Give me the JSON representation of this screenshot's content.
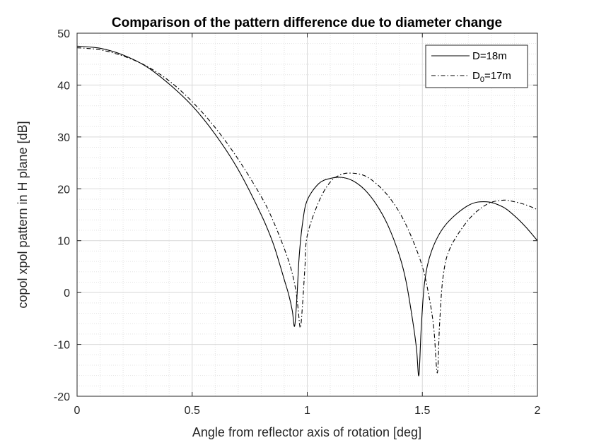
{
  "chart_data": {
    "type": "line",
    "title": "Comparison of the pattern difference due to diameter change",
    "xlabel": "Angle from reflector axis of rotation [deg]",
    "ylabel": "copol xpol pattern in H plane [dB]",
    "xlim": [
      0,
      2
    ],
    "ylim": [
      -20,
      50
    ],
    "xticks": [
      0,
      0.5,
      1,
      1.5,
      2
    ],
    "xtick_labels": [
      "0",
      "0.5",
      "1",
      "1.5",
      "2"
    ],
    "yticks": [
      -20,
      -10,
      0,
      10,
      20,
      30,
      40,
      50
    ],
    "ytick_labels": [
      "-20",
      "-10",
      "0",
      "10",
      "20",
      "30",
      "40",
      "50"
    ],
    "grid": true,
    "minor_grid": true,
    "legend_position": "top-right",
    "series": [
      {
        "name": "D=18m",
        "line_style": "solid",
        "color": "#000000",
        "x": [
          0,
          0.1,
          0.2,
          0.3,
          0.4,
          0.5,
          0.6,
          0.7,
          0.8,
          0.85,
          0.88,
          0.9,
          0.92,
          0.935,
          0.945,
          0.955,
          0.965,
          0.98,
          1.0,
          1.05,
          1.1,
          1.15,
          1.2,
          1.25,
          1.3,
          1.35,
          1.4,
          1.43,
          1.46,
          1.475,
          1.485,
          1.495,
          1.51,
          1.54,
          1.6,
          1.7,
          1.78,
          1.85,
          1.9,
          1.95,
          2.0
        ],
        "y": [
          47.5,
          47.1,
          45.8,
          43.6,
          40.2,
          36.0,
          30.5,
          23.7,
          15.0,
          9.7,
          5.5,
          2.5,
          -0.5,
          -3.5,
          -6.5,
          -1.0,
          7.0,
          13.5,
          17.8,
          21.0,
          22.0,
          22.2,
          21.5,
          19.8,
          17.0,
          13.0,
          7.2,
          2.0,
          -6.0,
          -11.0,
          -16.0,
          -7.0,
          2.0,
          8.0,
          13.0,
          16.8,
          17.5,
          16.5,
          14.8,
          12.6,
          10.0
        ]
      },
      {
        "name": "D0=17m",
        "name_text": "D",
        "name_subscript": "0",
        "name_suffix": "=17m",
        "line_style": "dashdot",
        "color": "#000000",
        "x": [
          0,
          0.1,
          0.2,
          0.3,
          0.4,
          0.5,
          0.6,
          0.7,
          0.8,
          0.85,
          0.9,
          0.93,
          0.95,
          0.96,
          0.97,
          0.98,
          0.99,
          1.0,
          1.05,
          1.1,
          1.15,
          1.2,
          1.25,
          1.3,
          1.35,
          1.4,
          1.45,
          1.5,
          1.53,
          1.55,
          1.565,
          1.575,
          1.59,
          1.62,
          1.7,
          1.78,
          1.85,
          1.9,
          1.95,
          2.0
        ],
        "y": [
          47.2,
          46.8,
          45.6,
          43.7,
          40.8,
          36.8,
          31.8,
          25.7,
          18.5,
          14.0,
          8.5,
          4.5,
          0.5,
          -3.0,
          -6.8,
          -2.0,
          5.0,
          11.0,
          17.5,
          21.3,
          22.8,
          23.0,
          22.5,
          21.0,
          18.7,
          15.5,
          11.0,
          5.0,
          -1.0,
          -7.0,
          -15.5,
          -6.0,
          3.0,
          8.5,
          14.0,
          17.0,
          17.8,
          17.5,
          16.9,
          16.0
        ]
      }
    ]
  }
}
